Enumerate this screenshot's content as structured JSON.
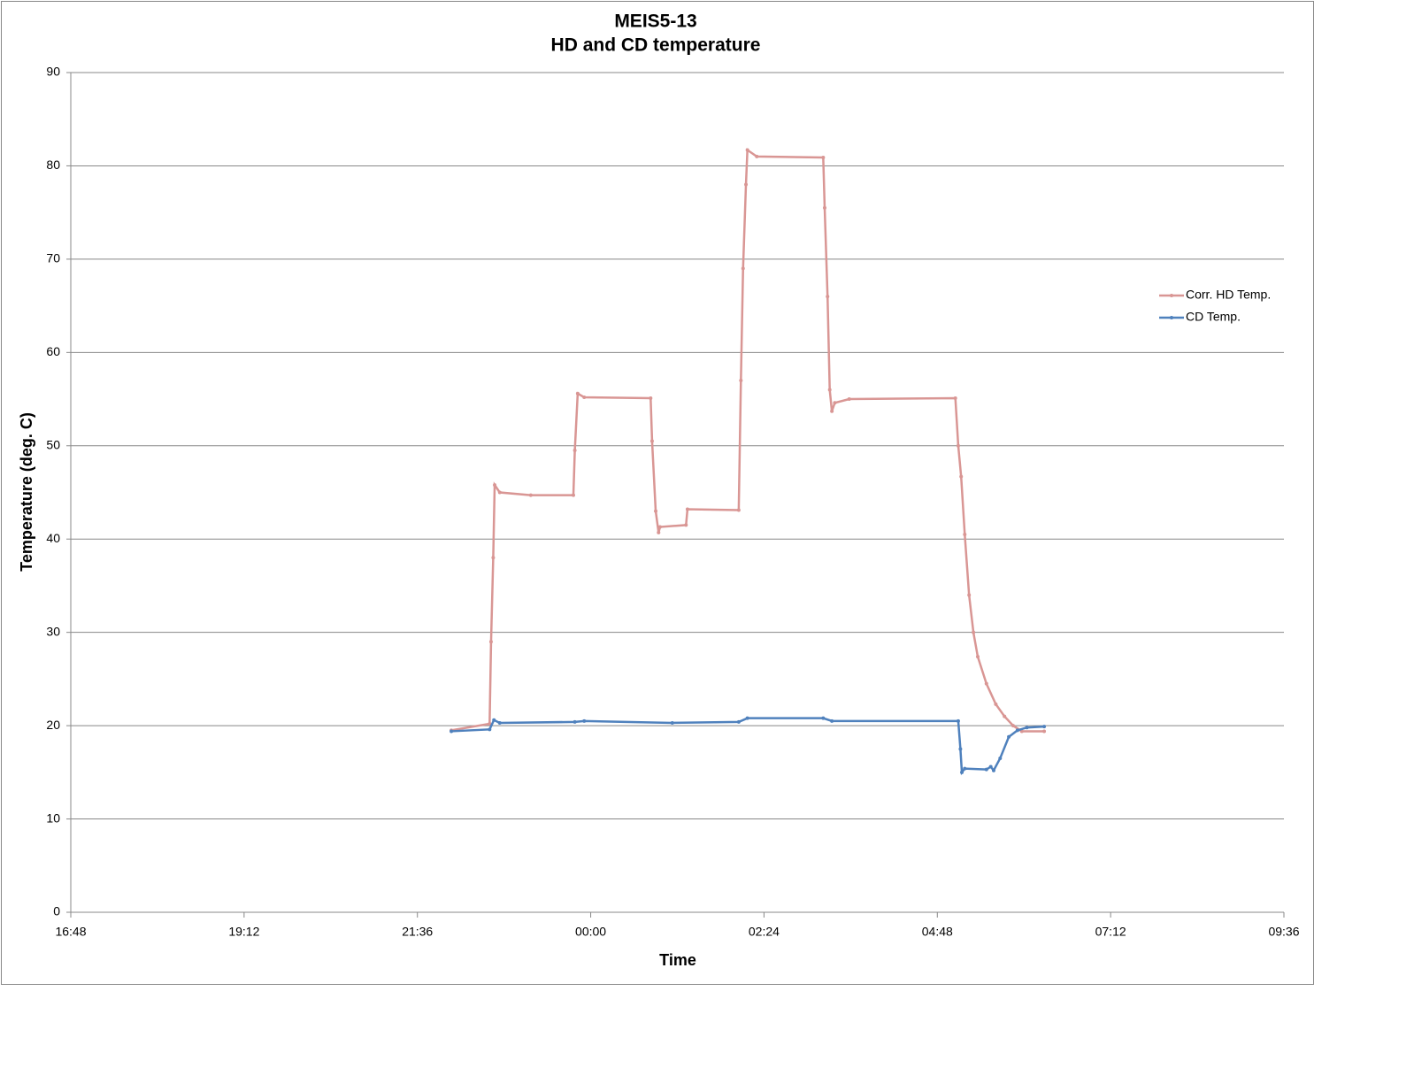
{
  "chart_data": {
    "type": "line",
    "title": "MEIS5-13",
    "subtitle": "HD and CD temperature",
    "x_label": "Time",
    "y_label": "Temperature (deg. C)",
    "xlim": [
      16.8,
      33.6
    ],
    "xticks": [
      {
        "value": 16.8,
        "label": "16:48"
      },
      {
        "value": 19.2,
        "label": "19:12"
      },
      {
        "value": 21.6,
        "label": "21:36"
      },
      {
        "value": 24,
        "label": "00:00"
      },
      {
        "value": 26.4,
        "label": "02:24"
      },
      {
        "value": 28.8,
        "label": "04:48"
      },
      {
        "value": 31.2,
        "label": "07:12"
      },
      {
        "value": 33.6,
        "label": "09:36"
      }
    ],
    "ylim": [
      0,
      90
    ],
    "yticks": [
      0,
      10,
      20,
      30,
      40,
      50,
      60,
      70,
      80,
      90
    ],
    "grid": true,
    "legend": "right",
    "series": [
      {
        "name": "Corr. HD Temp.",
        "color": "#d99694",
        "x": [
          22.07,
          22.6,
          22.62,
          22.65,
          22.67,
          22.74,
          23.17,
          23.76,
          23.78,
          23.82,
          23.91,
          24.83,
          24.85,
          24.9,
          24.94,
          24.96,
          25.32,
          25.34,
          26.05,
          26.08,
          26.11,
          26.15,
          26.17,
          26.3,
          27.22,
          27.24,
          27.28,
          27.31,
          27.34,
          27.38,
          27.58,
          29.05,
          29.09,
          29.13,
          29.18,
          29.24,
          29.3,
          29.36,
          29.48,
          29.61,
          29.73,
          29.85,
          29.97,
          30.28
        ],
        "values": [
          19.5,
          20.2,
          29,
          38,
          45.8,
          45,
          44.7,
          44.7,
          49.5,
          55.6,
          55.2,
          55.1,
          50.5,
          43,
          40.7,
          41.3,
          41.5,
          43.2,
          43.1,
          57,
          69,
          78,
          81.7,
          81,
          80.9,
          75.5,
          66,
          56,
          53.7,
          54.6,
          55,
          55.1,
          50,
          46.7,
          40.5,
          34,
          30,
          27.4,
          24.5,
          22.3,
          21,
          20,
          19.4,
          19.4
        ]
      },
      {
        "name": "CD Temp.",
        "color": "#4f81bd",
        "x": [
          22.07,
          22.6,
          22.66,
          22.74,
          23.78,
          23.91,
          25.13,
          26.05,
          26.17,
          27.22,
          27.34,
          29.09,
          29.12,
          29.14,
          29.18,
          29.48,
          29.54,
          29.58,
          29.67,
          29.79,
          29.91,
          30.04,
          30.28
        ],
        "values": [
          19.4,
          19.6,
          20.6,
          20.3,
          20.4,
          20.5,
          20.3,
          20.4,
          20.8,
          20.8,
          20.5,
          20.5,
          17.5,
          15,
          15.4,
          15.3,
          15.6,
          15.2,
          16.5,
          18.8,
          19.5,
          19.8,
          19.9
        ]
      }
    ]
  }
}
